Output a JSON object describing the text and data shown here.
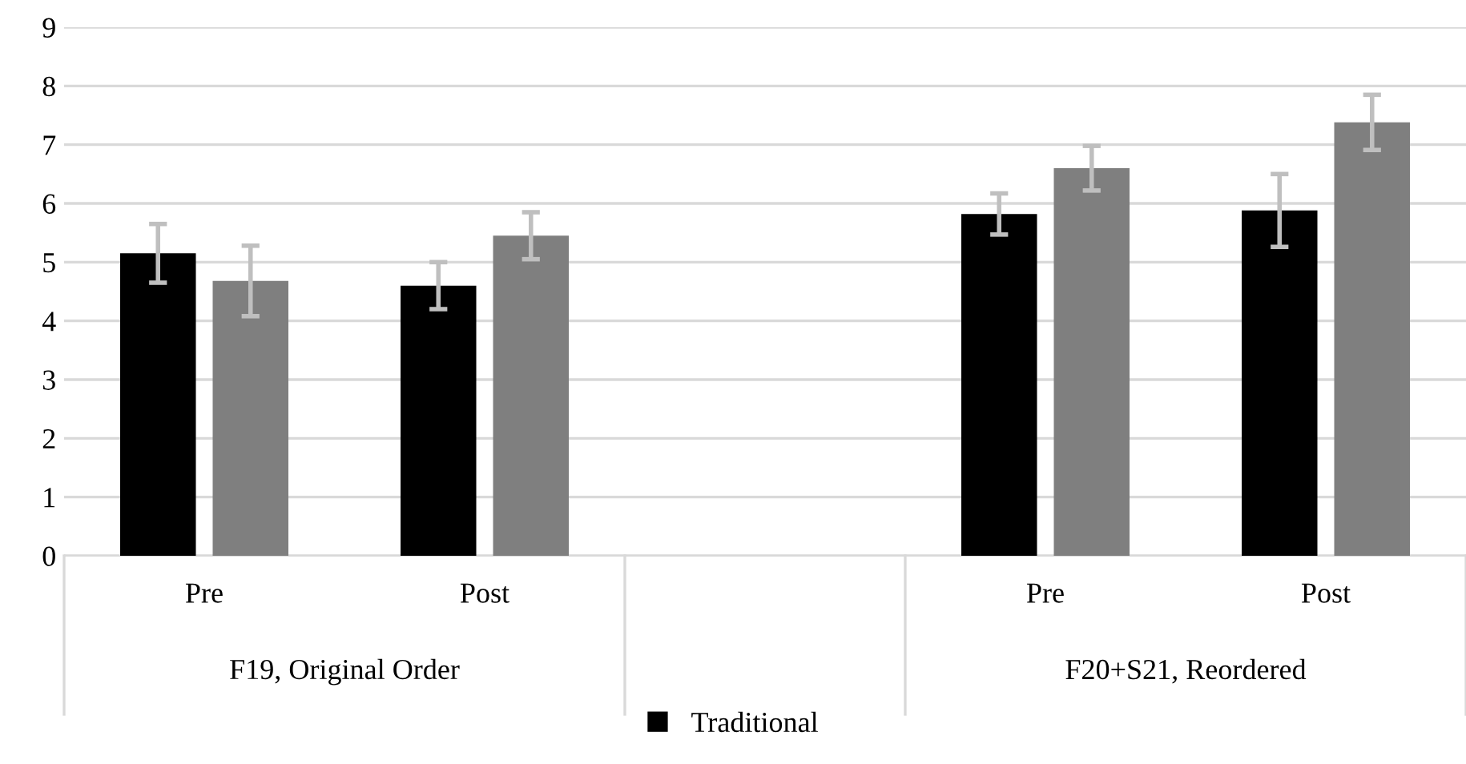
{
  "chart_data": {
    "type": "bar",
    "categories": [
      "Pre",
      "Post",
      null,
      "Pre",
      "Post"
    ],
    "series": [
      {
        "name": "Traditional",
        "color": "#000000",
        "values": [
          5.15,
          4.6,
          null,
          5.82,
          5.88
        ],
        "errors": [
          0.5,
          0.4,
          null,
          0.35,
          0.62
        ]
      },
      {
        "color": "#7f7f7f",
        "values": [
          4.68,
          5.45,
          null,
          6.6,
          7.38
        ],
        "errors": [
          0.6,
          0.4,
          null,
          0.38,
          0.47
        ]
      }
    ],
    "annotations": [
      "F19, Original Order",
      "F20+S21, Reordered"
    ],
    "ylim": [
      0,
      9
    ],
    "yticks": [
      0,
      1,
      2,
      3,
      4,
      5,
      6,
      7,
      8,
      9
    ],
    "grid": "y",
    "legend": "bottom"
  }
}
